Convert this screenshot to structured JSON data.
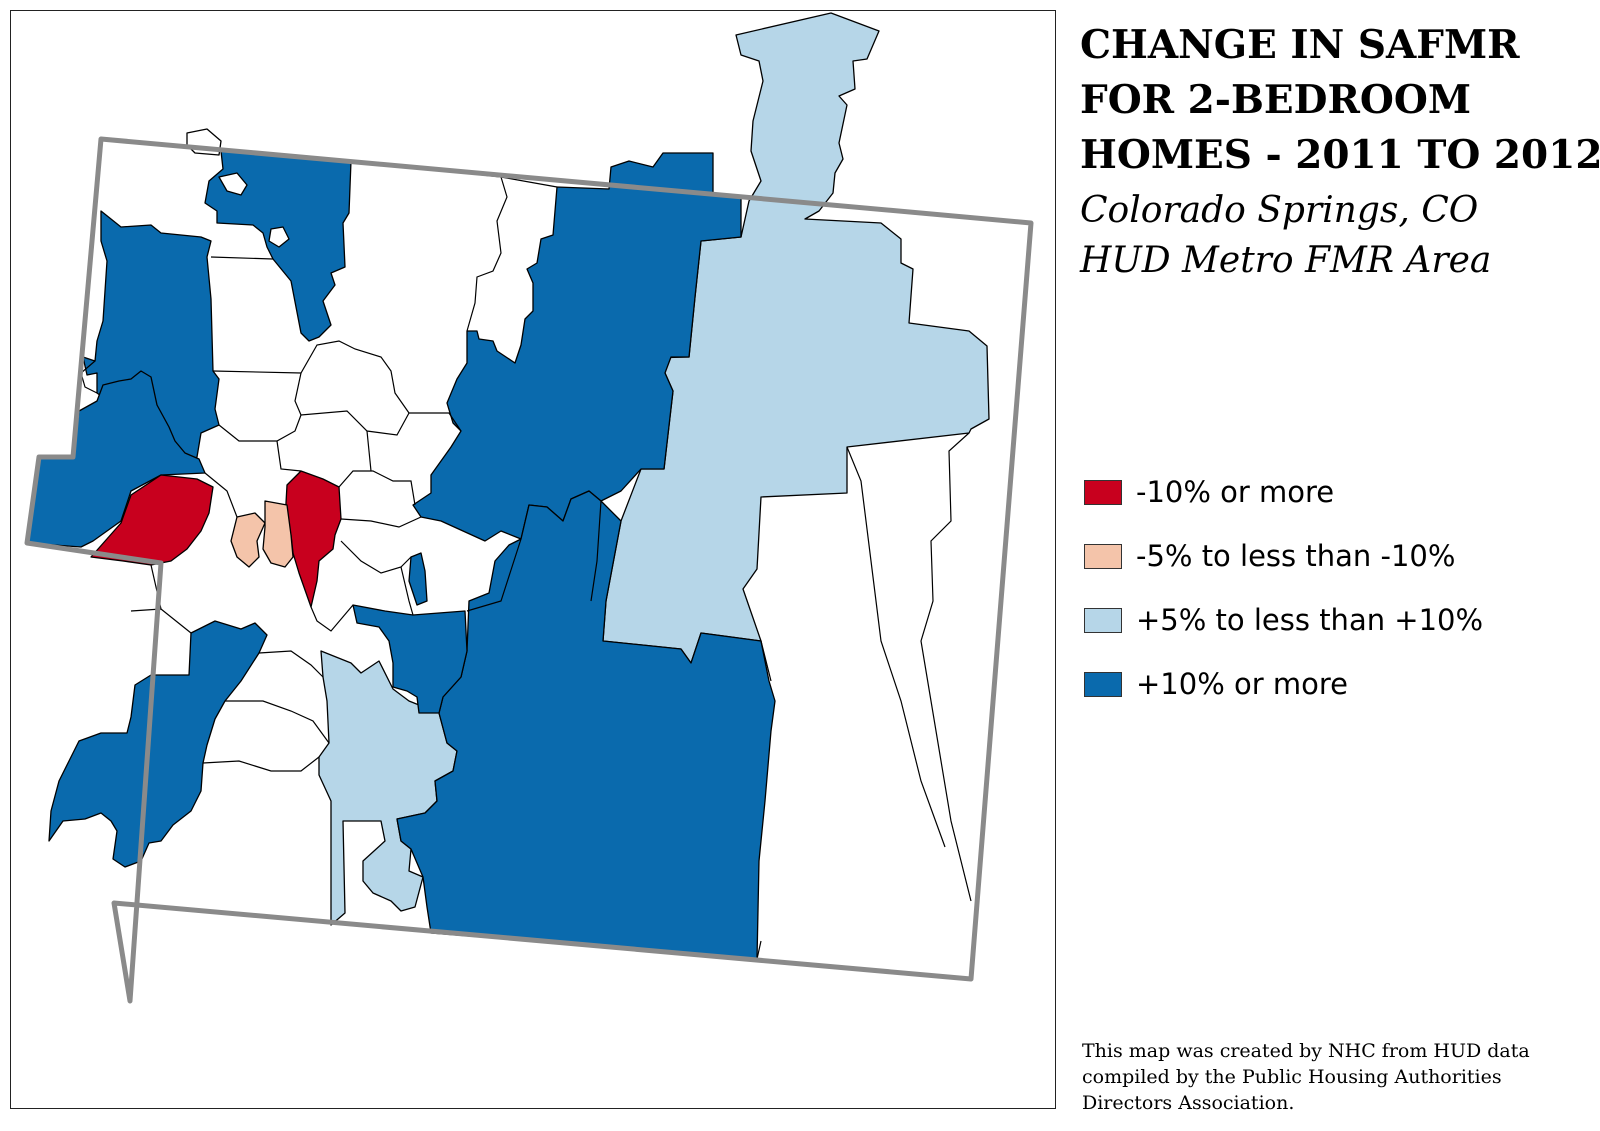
{
  "title": {
    "lines": [
      "CHANGE IN SAFMR",
      "FOR 2-BEDROOM",
      "HOMES - 2011 TO 2012"
    ]
  },
  "subtitle": {
    "lines": [
      "Colorado Springs, CO",
      "HUD Metro FMR Area"
    ]
  },
  "legend": {
    "items": [
      {
        "label": "-10% or more",
        "color": "#c8001e",
        "class_key": "dec10"
      },
      {
        "label": "-5% to less than -10%",
        "color": "#f4c4aa",
        "class_key": "dec5"
      },
      {
        "label": "+5% to less than +10%",
        "color": "#b6d6e8",
        "class_key": "inc5"
      },
      {
        "label": "+10% or more",
        "color": "#0a6aad",
        "class_key": "inc10"
      }
    ]
  },
  "colors": {
    "no_change": "#ffffff",
    "region_outline": "#8a8a8a",
    "zip_outline": "#000000"
  },
  "credit": {
    "lines": [
      "This map was created by NHC from HUD data",
      "compiled by the Public Housing Authorities",
      "Directors Association."
    ]
  }
}
